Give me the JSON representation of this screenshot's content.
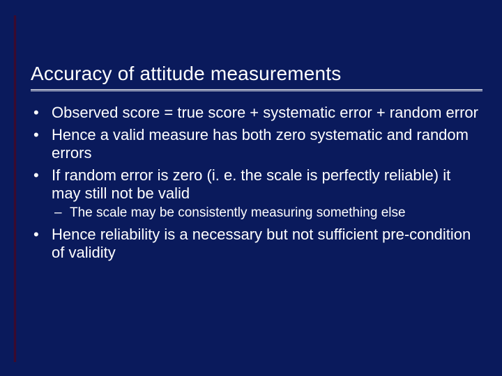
{
  "colors": {
    "background": "#0a1a5c",
    "text": "#ffffff",
    "left_rule": "#5a0010",
    "title_rule": "#ffffff"
  },
  "typography": {
    "family": "Verdana, Tahoma, Geneva, sans-serif",
    "title_fontsize_pt": 21,
    "body_fontsize_pt": 17,
    "sub_fontsize_pt": 14,
    "title_weight": 400
  },
  "slide": {
    "title": "Accuracy of attitude measurements",
    "bullets": [
      {
        "text": "Observed score = true score + systematic error + random error"
      },
      {
        "text": "Hence a valid measure has both zero systematic and random errors"
      },
      {
        "text": "If random error is zero (i. e. the scale is perfectly reliable) it may still not be valid",
        "sub": [
          "The scale may be consistently measuring something else"
        ]
      },
      {
        "text": "Hence reliability is a necessary but not sufficient pre-condition of validity"
      }
    ]
  }
}
